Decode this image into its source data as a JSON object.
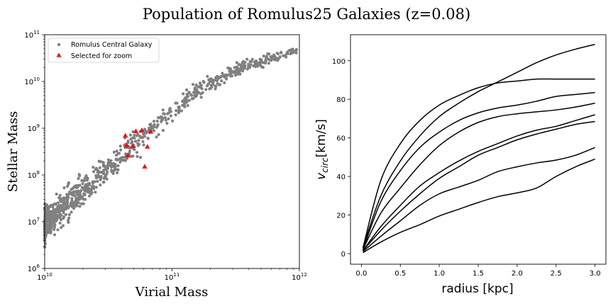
{
  "figure": {
    "suptitle": "Population of Romulus25 Galaxies (z=0.08)"
  },
  "chart_data": [
    {
      "type": "scatter",
      "xlabel": "Virial Mass",
      "ylabel": "Stellar Mass",
      "xscale": "log",
      "yscale": "log",
      "xlim": [
        10000000000.0,
        1000000000000.0
      ],
      "ylim": [
        1000000.0,
        100000000000.0
      ],
      "x_ticks": [
        {
          "v": 10000000000.0,
          "base": "10",
          "exp": "10"
        },
        {
          "v": 100000000000.0,
          "base": "10",
          "exp": "11"
        },
        {
          "v": 1000000000000.0,
          "base": "10",
          "exp": "12"
        }
      ],
      "y_ticks": [
        {
          "v": 1000000.0,
          "base": "10",
          "exp": "6"
        },
        {
          "v": 10000000.0,
          "base": "10",
          "exp": "7"
        },
        {
          "v": 100000000.0,
          "base": "10",
          "exp": "8"
        },
        {
          "v": 1000000000.0,
          "base": "10",
          "exp": "9"
        },
        {
          "v": 10000000000.0,
          "base": "10",
          "exp": "10"
        },
        {
          "v": 100000000000.0,
          "base": "10",
          "exp": "11"
        }
      ],
      "legend": {
        "position": "upper-left",
        "entries": [
          {
            "label": "Romulus Central Galaxy",
            "color": "#808080",
            "marker": "circle"
          },
          {
            "label": "Selected for zoom",
            "color": "#ff0000",
            "marker": "triangle"
          }
        ]
      },
      "series": [
        {
          "name": "Romulus Central Galaxy",
          "color": "#808080",
          "trend": [
            [
              10.0,
              6.95
            ],
            [
              10.2,
              7.45
            ],
            [
              10.4,
              7.95
            ],
            [
              10.6,
              8.35
            ],
            [
              10.8,
              8.85
            ],
            [
              11.0,
              9.35
            ],
            [
              11.2,
              9.8
            ],
            [
              11.4,
              10.1
            ],
            [
              11.6,
              10.35
            ],
            [
              11.8,
              10.5
            ],
            [
              12.0,
              10.7
            ]
          ],
          "count": 900
        },
        {
          "name": "Selected for zoom",
          "color": "#ff0000",
          "points": [
            [
              43000000000.0,
              690000000.0
            ],
            [
              44000000000.0,
              430000000.0
            ],
            [
              45000000000.0,
              260000000.0
            ],
            [
              49000000000.0,
              410000000.0
            ],
            [
              52000000000.0,
              860000000.0
            ],
            [
              58000000000.0,
              900000000.0
            ],
            [
              61000000000.0,
              150000000.0
            ],
            [
              64000000000.0,
              400000000.0
            ],
            [
              68000000000.0,
              840000000.0
            ]
          ]
        }
      ]
    },
    {
      "type": "line",
      "xlabel": "radius [kpc]",
      "ylabel": "v",
      "ylabel_sub": "circ",
      "ylabel_unit": "[km/s]",
      "xlim": [
        -0.14,
        3.14
      ],
      "ylim": [
        -5.5,
        113.5
      ],
      "x_ticks": [
        {
          "v": 0.0,
          "label": "0.0"
        },
        {
          "v": 0.5,
          "label": "0.5"
        },
        {
          "v": 1.0,
          "label": "1.0"
        },
        {
          "v": 1.5,
          "label": "1.5"
        },
        {
          "v": 2.0,
          "label": "2.0"
        },
        {
          "v": 2.5,
          "label": "2.5"
        },
        {
          "v": 3.0,
          "label": "3.0"
        }
      ],
      "y_ticks": [
        {
          "v": 0,
          "label": "0"
        },
        {
          "v": 20,
          "label": "20"
        },
        {
          "v": 40,
          "label": "40"
        },
        {
          "v": 60,
          "label": "60"
        },
        {
          "v": 80,
          "label": "80"
        },
        {
          "v": 100,
          "label": "100"
        }
      ],
      "x": [
        0.02,
        0.25,
        0.5,
        0.75,
        1.0,
        1.25,
        1.5,
        1.75,
        2.0,
        2.25,
        2.5,
        2.75,
        3.0
      ],
      "series": [
        {
          "values": [
            3,
            30,
            48,
            61,
            71,
            78,
            84,
            89,
            94,
            99,
            103,
            106,
            108.5
          ]
        },
        {
          "values": [
            3,
            38,
            57,
            69,
            77,
            82,
            86,
            88.5,
            89.5,
            90.5,
            90.5,
            90.5,
            90.5
          ]
        },
        {
          "values": [
            2,
            27,
            43,
            55,
            63,
            69,
            73,
            75.5,
            77,
            79,
            81.5,
            82.5,
            83.5
          ]
        },
        {
          "values": [
            2,
            21,
            34,
            46,
            56,
            63,
            68,
            71,
            72.5,
            73.5,
            74.5,
            76,
            78
          ]
        },
        {
          "values": [
            1.5,
            14,
            25,
            35,
            42,
            48,
            53,
            57,
            61,
            64,
            66,
            69,
            72
          ]
        },
        {
          "values": [
            1.5,
            12,
            22,
            31,
            39,
            45,
            51,
            55,
            59,
            62,
            64.5,
            67,
            68.5
          ]
        },
        {
          "values": [
            1,
            9,
            17,
            25,
            31,
            34.5,
            38,
            42.5,
            45,
            47,
            48.5,
            51,
            55
          ]
        },
        {
          "values": [
            0.5,
            6,
            11,
            15,
            19.5,
            23,
            26.5,
            29.5,
            31.5,
            34,
            40,
            45,
            49
          ]
        }
      ]
    }
  ]
}
